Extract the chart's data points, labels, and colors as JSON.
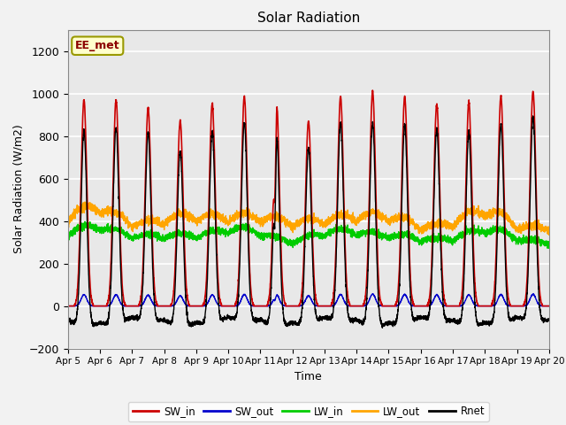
{
  "title": "Solar Radiation",
  "xlabel": "Time",
  "ylabel": "Solar Radiation (W/m2)",
  "ylim": [
    -200,
    1300
  ],
  "yticks": [
    -200,
    0,
    200,
    400,
    600,
    800,
    1000,
    1200
  ],
  "n_days": 15,
  "points_per_day": 288,
  "annotation_text": "EE_met",
  "annotation_color": "#8B0000",
  "annotation_bg": "#FFFFCC",
  "annotation_border": "#999900",
  "colors": {
    "SW_in": "#CC0000",
    "SW_out": "#0000CC",
    "LW_in": "#00CC00",
    "LW_out": "#FFA500",
    "Rnet": "#000000"
  },
  "background_color": "#E8E8E8",
  "grid_color": "#FFFFFF",
  "sw_peaks": [
    970,
    970,
    930,
    870,
    950,
    985,
    980,
    870,
    985,
    1010,
    985,
    950,
    960,
    990,
    1010
  ],
  "xtick_labels": [
    "Apr 5",
    "Apr 6",
    "Apr 7",
    "Apr 8",
    "Apr 9",
    "Apr 10",
    "Apr 11",
    "Apr 12",
    "Apr 13",
    "Apr 14",
    "Apr 15",
    "Apr 16",
    "Apr 17",
    "Apr 18",
    "Apr 19",
    "Apr 20"
  ]
}
